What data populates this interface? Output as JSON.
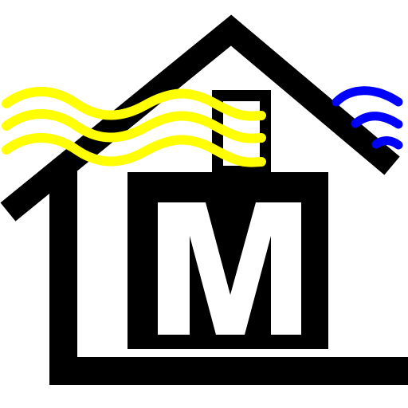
{
  "logo": {
    "letter": "M",
    "icon": "house-with-waves-icon",
    "colors": {
      "background": "#ffffff",
      "house": "#000000",
      "heat_waves": "#ffff00",
      "cool_waves": "#0000ff",
      "letter": "#000000"
    }
  }
}
